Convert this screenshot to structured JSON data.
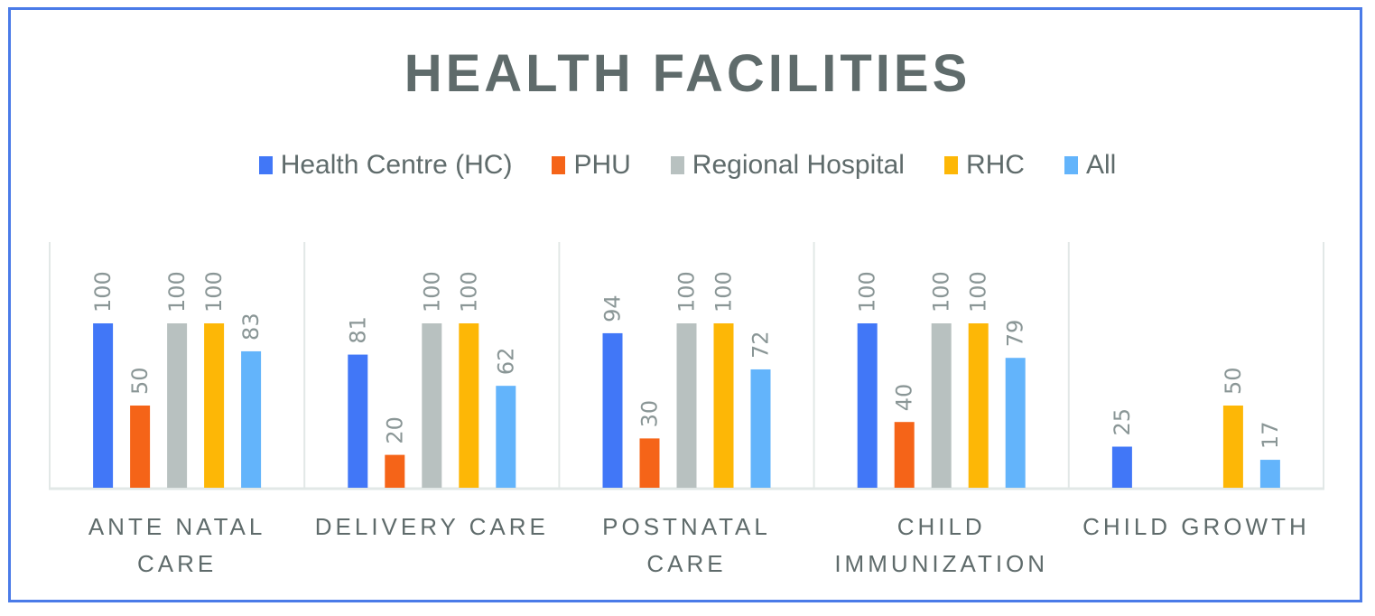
{
  "chart_data": {
    "type": "bar",
    "title": "HEALTH FACILITIES",
    "xlabel": "",
    "ylabel": "",
    "ylim": [
      0,
      140
    ],
    "grid": false,
    "legend_position": "top",
    "categories": [
      [
        "ANTE NATAL",
        "CARE"
      ],
      [
        "DELIVERY CARE"
      ],
      [
        "POSTNATAL",
        "CARE"
      ],
      [
        "CHILD",
        "IMMUNIZATION"
      ],
      [
        "CHILD GROWTH"
      ]
    ],
    "series": [
      {
        "name": "Health Centre (HC)",
        "color": "#4177f7",
        "values": [
          100,
          81,
          94,
          100,
          25
        ]
      },
      {
        "name": "PHU",
        "color": "#f56418",
        "values": [
          50,
          20,
          30,
          40,
          null
        ]
      },
      {
        "name": "Regional Hospital",
        "color": "#b8c1c0",
        "values": [
          100,
          100,
          100,
          100,
          null
        ]
      },
      {
        "name": "RHC",
        "color": "#fdb706",
        "values": [
          100,
          100,
          100,
          100,
          50
        ]
      },
      {
        "name": "All",
        "color": "#63b4fb",
        "values": [
          83,
          62,
          72,
          79,
          17
        ]
      }
    ]
  },
  "colors": {
    "frame": "#4a7be8",
    "text": "#5f6b6b",
    "value_label": "#8a9696",
    "axis": "#e2e8e7"
  }
}
